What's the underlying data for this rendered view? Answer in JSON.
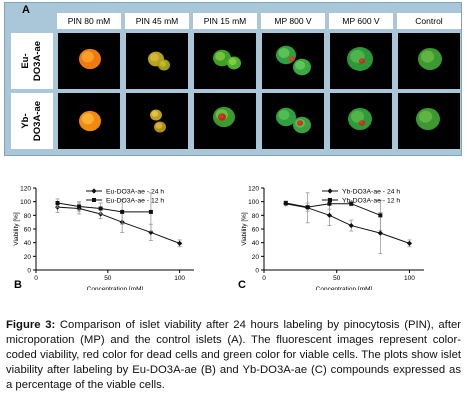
{
  "panel_a": {
    "letter": "A",
    "columns": [
      "PIN 80 mM",
      "PIN 45 mM",
      "PIN 15 mM",
      "MP 800 V",
      "MP 600 V",
      "Control"
    ],
    "rows": [
      "Eu-\nDO3A-ae",
      "Yb-\nDO3A-ae"
    ]
  },
  "chart_data": [
    {
      "type": "line",
      "panel_letter": "B",
      "xlabel": "Concentration [mM]",
      "ylabel": "Viability [%]",
      "xlim": [
        0,
        110
      ],
      "ylim": [
        0,
        120
      ],
      "x_ticks": [
        "0",
        "50",
        "100"
      ],
      "y_ticks": [
        "0",
        "20",
        "40",
        "60",
        "80",
        "100",
        "120"
      ],
      "legend_position": "top-right",
      "series": [
        {
          "name": "Eu-DO3A-ae - 24 h",
          "marker": "diamond",
          "x": [
            15,
            30,
            45,
            60,
            80,
            100
          ],
          "y": [
            92,
            90,
            82,
            70,
            55,
            39
          ],
          "err": [
            8,
            8,
            7,
            15,
            12,
            5
          ]
        },
        {
          "name": "Eu-DO3A-ae - 12 h",
          "marker": "square",
          "x": [
            15,
            30,
            45,
            60,
            80
          ],
          "y": [
            98,
            93,
            90,
            85,
            85
          ],
          "err": [
            6,
            7,
            8,
            18,
            28
          ]
        }
      ]
    },
    {
      "type": "line",
      "panel_letter": "C",
      "xlabel": "Concentration [mM]",
      "ylabel": "Viability [%]",
      "xlim": [
        0,
        110
      ],
      "ylim": [
        0,
        120
      ],
      "x_ticks": [
        "0",
        "50",
        "100"
      ],
      "y_ticks": [
        "0",
        "20",
        "40",
        "60",
        "80",
        "100",
        "120"
      ],
      "legend_position": "top-right",
      "series": [
        {
          "name": "Yb-DO3A-ae - 24 h",
          "marker": "diamond",
          "x": [
            15,
            30,
            45,
            60,
            80,
            100
          ],
          "y": [
            97,
            91,
            80,
            65,
            54,
            39
          ],
          "err": [
            3,
            22,
            15,
            8,
            30,
            5
          ]
        },
        {
          "name": "Yb-DO3A-ae - 12 h",
          "marker": "square",
          "x": [
            15,
            30,
            45,
            60,
            80
          ],
          "y": [
            98,
            92,
            97,
            97,
            80
          ],
          "err": [
            3,
            6,
            8,
            3,
            22
          ]
        }
      ]
    }
  ],
  "caption": {
    "label": "Figure 3:",
    "text": " Comparison of islet viability after 24 hours labeling by pinocytosis (PIN), after microporation (MP) and the control islets (A). The fluorescent images represent color-coded viability, red color for dead cells and green color for viable cells. The plots show islet viability after labeling by Eu-DO3A-ae (B) and Yb-DO3A-ae (C) compounds expressed as a percentage of the viable cells."
  }
}
